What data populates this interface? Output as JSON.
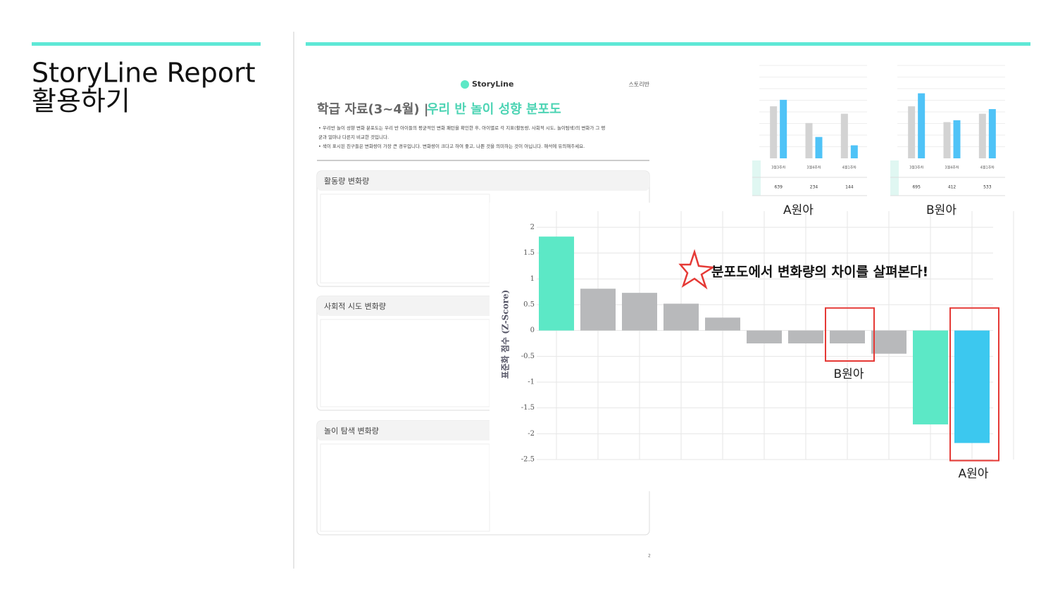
{
  "slide": {
    "title_lines": [
      "StoryLine Report",
      "활용하기"
    ]
  },
  "report": {
    "logo": "StoryLine",
    "class_name": "스토리반",
    "heading": "학급 자료(3~4월) |",
    "heading_highlight": "우리 반 놀이 성향 분포도",
    "bullets": [
      "우리반 놀이 성향 변화 분포도는 우리 반 아이들의 평균적인 변화 패턴을 확인한 후, 아이별로 각 지표(활동량, 사회적 시도, 놀이탐색)의 변화가 그 평균과 얼마나 다른지 비교한 것입니다.",
      "색이 표시된 친구들은 변화량이 가장 큰 경우입니다. 변화량이 크다고 하여 좋고, 나쁜 것을 의미하는 것이 아닙니다. 해석에 유의해주세요."
    ],
    "sections": [
      "활동량 변화량",
      "사회적 시도 변화량",
      "놀이 탐색 변화량"
    ],
    "page": "2"
  },
  "chart_data": [
    {
      "type": "bar",
      "y_label": "표준화 점수 (Z-Score)",
      "annotation": "분포도에서 변화량의 차이를 살펴본다!",
      "values": [
        1.82,
        0.81,
        0.73,
        0.52,
        0.25,
        -0.25,
        -0.25,
        -0.25,
        -0.45,
        -1.82,
        -2.18
      ],
      "colors": [
        "#5ce8c6",
        "#b8b9bb",
        "#b8b9bb",
        "#b8b9bb",
        "#b8b9bb",
        "#b8b9bb",
        "#b8b9bb",
        "#b8b9bb",
        "#b8b9bb",
        "#5ce8c6",
        "#3cc8ef"
      ],
      "highlights": [
        "B원아",
        "A원아"
      ],
      "ylim": [
        -2.5,
        2
      ],
      "yticks": [
        2,
        1.5,
        1,
        0.5,
        0,
        -0.5,
        -1,
        -1.5,
        -2,
        -2.5
      ],
      "grid": true
    },
    {
      "type": "grouped-bar",
      "title": "A원아",
      "categories": [
        "3월3주차",
        "3월4주차",
        "4월1주차"
      ],
      "series": [
        {
          "color": "#d3d3d3",
          "values": [
            56,
            38,
            48
          ]
        },
        {
          "color": "#4fc3f7",
          "values": [
            63,
            23,
            14
          ]
        }
      ],
      "table_values": [
        639,
        234,
        144
      ],
      "ylim": [
        0,
        100
      ]
    },
    {
      "type": "grouped-bar",
      "title": "B원아",
      "categories": [
        "3월3주차",
        "3월4주차",
        "4월1주차"
      ],
      "series": [
        {
          "color": "#d3d3d3",
          "values": [
            56,
            39,
            48
          ]
        },
        {
          "color": "#4fc3f7",
          "values": [
            70,
            41,
            53
          ]
        }
      ],
      "table_values": [
        695,
        412,
        533
      ],
      "ylim": [
        0,
        100
      ]
    }
  ]
}
